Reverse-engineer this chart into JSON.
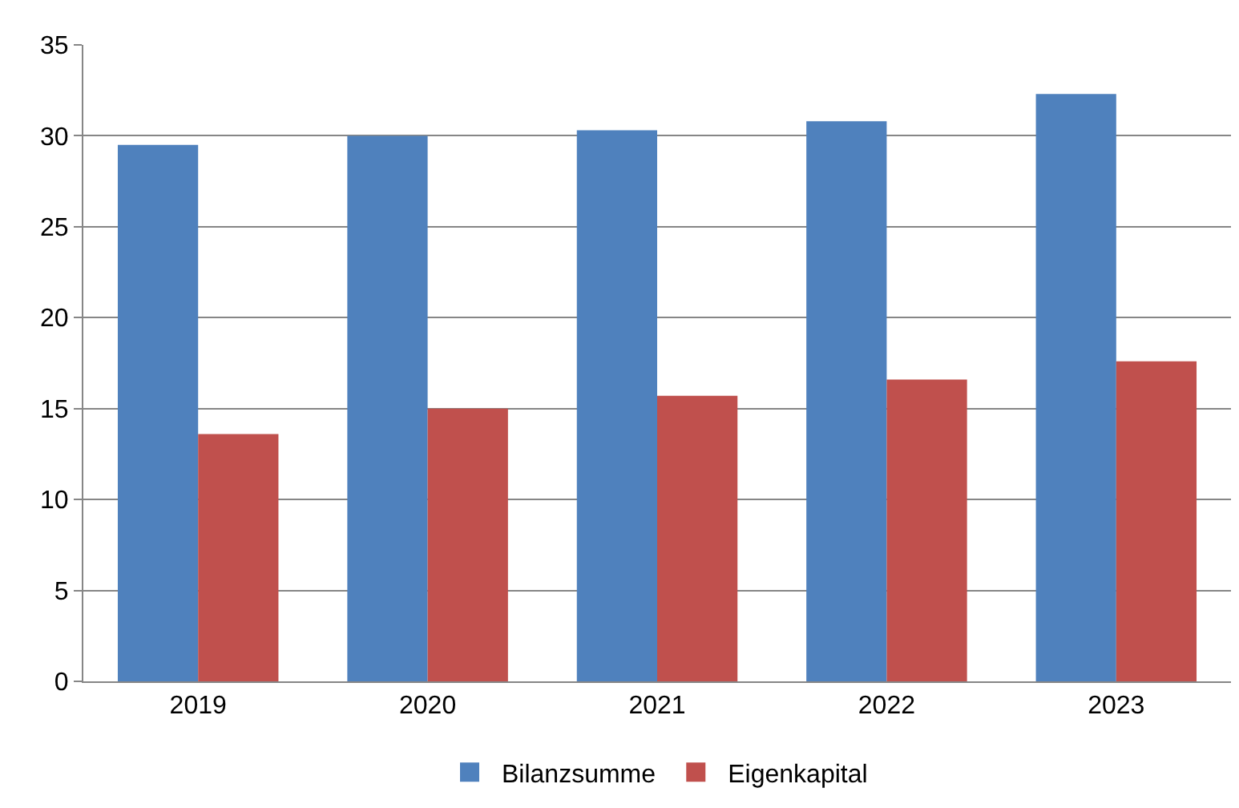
{
  "chart_data": {
    "type": "bar",
    "categories": [
      "2019",
      "2020",
      "2021",
      "2022",
      "2023"
    ],
    "series": [
      {
        "name": "Bilanzsumme",
        "color": "#4f81bd",
        "values": [
          29.5,
          30.0,
          30.3,
          30.8,
          32.3
        ]
      },
      {
        "name": "Eigenkapital",
        "color": "#c0504d",
        "values": [
          13.6,
          15.0,
          15.7,
          16.6,
          17.6
        ]
      }
    ],
    "ylim": [
      0,
      35
    ],
    "yticks": [
      0,
      5,
      10,
      15,
      20,
      25,
      30,
      35
    ],
    "grid": "y",
    "legend": "bottom"
  }
}
